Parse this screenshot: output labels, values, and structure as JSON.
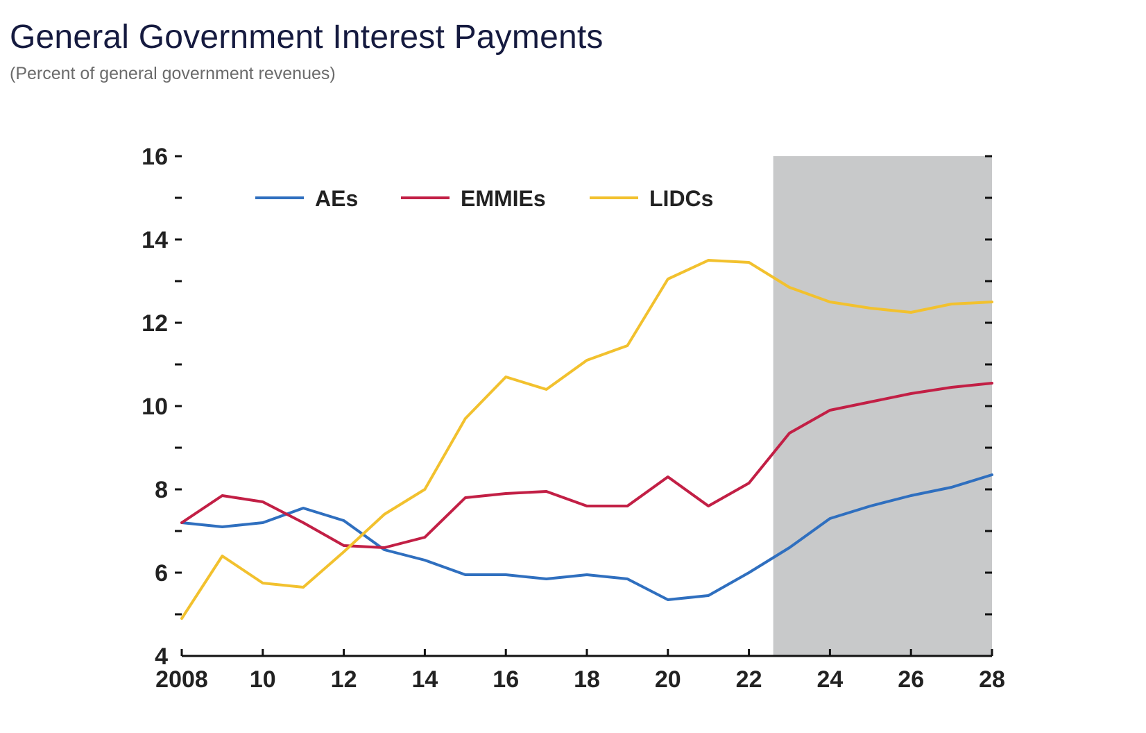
{
  "header": {
    "title": "General Government Interest Payments",
    "subtitle": "(Percent of general government revenues)"
  },
  "chart_data": {
    "type": "line",
    "title": "General Government Interest Payments",
    "subtitle": "(Percent of general government revenues)",
    "xlabel": "",
    "ylabel": "",
    "x": [
      2008,
      2009,
      2010,
      2011,
      2012,
      2013,
      2014,
      2015,
      2016,
      2017,
      2018,
      2019,
      2020,
      2021,
      2022,
      2023,
      2024,
      2025,
      2026,
      2027,
      2028
    ],
    "x_tick_values": [
      2008,
      2010,
      2012,
      2014,
      2016,
      2018,
      2020,
      2022,
      2024,
      2026,
      2028
    ],
    "x_tick_labels": [
      "2008",
      "10",
      "12",
      "14",
      "16",
      "18",
      "20",
      "22",
      "24",
      "26",
      "28"
    ],
    "xlim": [
      2008,
      2028
    ],
    "ylim": [
      4,
      16
    ],
    "y_tick_values": [
      4,
      6,
      8,
      10,
      12,
      14,
      16
    ],
    "y_tick_labels": [
      "4",
      "6",
      "8",
      "10",
      "12",
      "14",
      "16"
    ],
    "y_minor_ticks": [
      5,
      7,
      9,
      11,
      13,
      15
    ],
    "projection_shade": {
      "from": 2022.6,
      "to": 2028,
      "color": "#c8c9ca"
    },
    "grid": false,
    "legend_position": "top",
    "series": [
      {
        "name": "AEs",
        "color": "#2f6fbf",
        "values": [
          7.2,
          7.1,
          7.2,
          7.55,
          7.25,
          6.55,
          6.3,
          5.95,
          5.95,
          5.85,
          5.95,
          5.85,
          5.35,
          5.45,
          6.0,
          6.6,
          7.3,
          7.6,
          7.85,
          8.05,
          8.35
        ]
      },
      {
        "name": "EMMIEs",
        "color": "#c21f45",
        "values": [
          7.2,
          7.85,
          7.7,
          7.2,
          6.65,
          6.6,
          6.85,
          7.8,
          7.9,
          7.95,
          7.6,
          7.6,
          8.3,
          7.6,
          8.15,
          9.35,
          9.9,
          10.1,
          10.3,
          10.45,
          10.55
        ]
      },
      {
        "name": "LIDCs",
        "color": "#f2c12e",
        "values": [
          4.9,
          6.4,
          5.75,
          5.65,
          6.5,
          7.4,
          8.0,
          9.7,
          10.7,
          10.4,
          11.1,
          11.45,
          13.05,
          13.5,
          13.45,
          12.85,
          12.5,
          12.35,
          12.25,
          12.45,
          12.5
        ]
      }
    ]
  }
}
